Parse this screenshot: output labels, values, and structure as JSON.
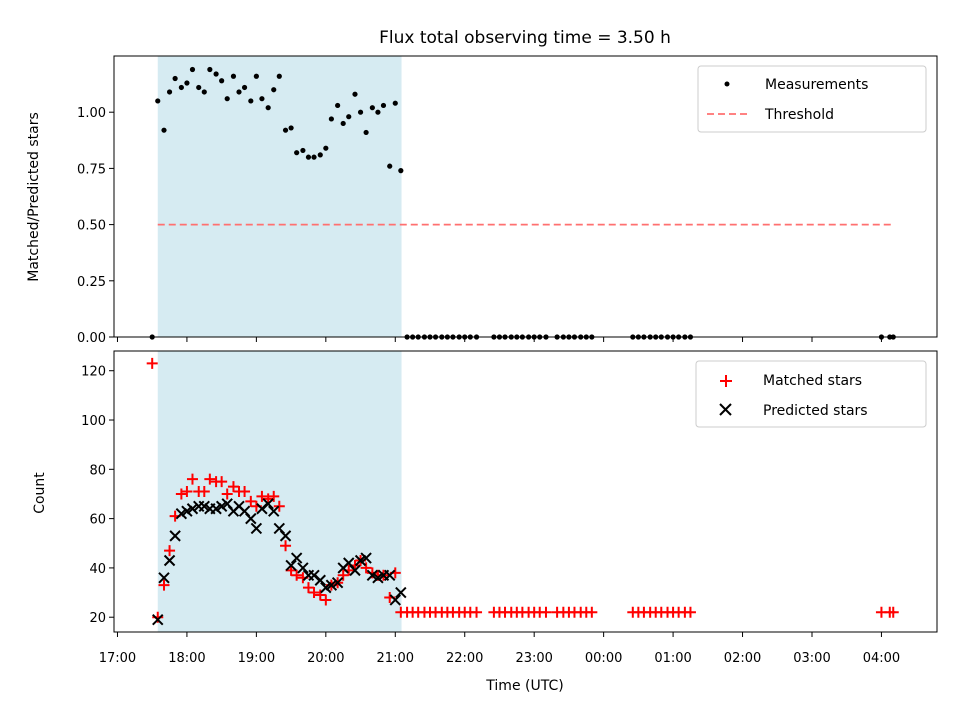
{
  "chart_data": [
    {
      "type": "scatter",
      "title": "Flux total observing time = 3.50 h",
      "xlabel": "",
      "ylabel": "Matched/Predicted stars",
      "xlim": [
        16.95,
        28.8
      ],
      "ylim": [
        0,
        1.25
      ],
      "yticks": [
        0.0,
        0.25,
        0.5,
        0.75,
        1.0
      ],
      "ytick_labels": [
        "0.00",
        "0.25",
        "0.50",
        "0.75",
        "1.00"
      ],
      "observing_window": [
        17.58,
        21.09
      ],
      "threshold": {
        "name": "Threshold",
        "y": 0.5,
        "x_range": [
          17.58,
          28.18
        ],
        "color": "#ff7070"
      },
      "legend": [
        "Measurements",
        "Threshold"
      ],
      "series": [
        {
          "name": "Measurements",
          "color": "#000000",
          "x": [
            17.5,
            17.58,
            17.67,
            17.75,
            17.83,
            17.92,
            18.0,
            18.08,
            18.17,
            18.25,
            18.33,
            18.42,
            18.5,
            18.58,
            18.67,
            18.75,
            18.83,
            18.92,
            19.0,
            19.08,
            19.17,
            19.25,
            19.33,
            19.42,
            19.5,
            19.58,
            19.67,
            19.75,
            19.83,
            19.92,
            20.0,
            20.08,
            20.17,
            20.25,
            20.33,
            20.42,
            20.5,
            20.58,
            20.67,
            20.75,
            20.83,
            20.92,
            21.0,
            21.08,
            21.17,
            21.25,
            21.33,
            21.42,
            21.5,
            21.58,
            21.67,
            21.75,
            21.83,
            21.92,
            22.0,
            22.08,
            22.17,
            22.42,
            22.5,
            22.58,
            22.67,
            22.75,
            22.83,
            22.92,
            23.0,
            23.08,
            23.17,
            23.33,
            23.42,
            23.5,
            23.58,
            23.67,
            23.75,
            23.83,
            24.42,
            24.5,
            24.58,
            24.67,
            24.75,
            24.83,
            24.92,
            25.0,
            25.08,
            25.17,
            25.25,
            28.0,
            28.12,
            28.17
          ],
          "y": [
            0.0,
            1.05,
            0.92,
            1.09,
            1.15,
            1.11,
            1.13,
            1.19,
            1.11,
            1.09,
            1.19,
            1.17,
            1.14,
            1.06,
            1.16,
            1.09,
            1.11,
            1.05,
            1.16,
            1.06,
            1.02,
            1.1,
            1.16,
            0.92,
            0.93,
            0.82,
            0.83,
            0.8,
            0.8,
            0.81,
            0.84,
            0.97,
            1.03,
            0.95,
            0.98,
            1.08,
            1.0,
            0.91,
            1.02,
            1.0,
            1.03,
            0.76,
            1.04,
            0.74,
            0,
            0,
            0,
            0,
            0,
            0,
            0,
            0,
            0,
            0,
            0,
            0,
            0,
            0,
            0,
            0,
            0,
            0,
            0,
            0,
            0,
            0,
            0,
            0,
            0,
            0,
            0,
            0,
            0,
            0,
            0,
            0,
            0,
            0,
            0,
            0,
            0,
            0,
            0,
            0,
            0,
            0,
            0,
            0
          ]
        }
      ]
    },
    {
      "type": "scatter",
      "title": "",
      "xlabel": "Time (UTC)",
      "ylabel": "Count",
      "xlim": [
        16.95,
        28.8
      ],
      "ylim": [
        14,
        128
      ],
      "yticks": [
        20,
        40,
        60,
        80,
        100,
        120
      ],
      "ytick_labels": [
        "20",
        "40",
        "60",
        "80",
        "100",
        "120"
      ],
      "xticks": [
        17,
        18,
        19,
        20,
        21,
        22,
        23,
        24,
        25,
        26,
        27,
        28
      ],
      "xtick_labels": [
        "17:00",
        "18:00",
        "19:00",
        "20:00",
        "21:00",
        "22:00",
        "23:00",
        "00:00",
        "01:00",
        "02:00",
        "03:00",
        "04:00"
      ],
      "observing_window": [
        17.58,
        21.09
      ],
      "legend": [
        "Matched stars",
        "Predicted stars"
      ],
      "series": [
        {
          "name": "Matched stars",
          "marker": "plus",
          "color": "#ff0000",
          "x": [
            17.5,
            17.58,
            17.67,
            17.75,
            17.83,
            17.92,
            18.0,
            18.08,
            18.17,
            18.25,
            18.33,
            18.42,
            18.5,
            18.58,
            18.67,
            18.75,
            18.83,
            18.92,
            19.0,
            19.08,
            19.17,
            19.25,
            19.33,
            19.42,
            19.5,
            19.58,
            19.67,
            19.75,
            19.83,
            19.92,
            20.0,
            20.08,
            20.17,
            20.25,
            20.33,
            20.42,
            20.5,
            20.58,
            20.67,
            20.75,
            20.83,
            20.92,
            21.0,
            21.08,
            21.17,
            21.25,
            21.33,
            21.42,
            21.5,
            21.58,
            21.67,
            21.75,
            21.83,
            21.92,
            22.0,
            22.08,
            22.17,
            22.42,
            22.5,
            22.58,
            22.67,
            22.75,
            22.83,
            22.92,
            23.0,
            23.08,
            23.17,
            23.33,
            23.42,
            23.5,
            23.58,
            23.67,
            23.75,
            23.83,
            24.42,
            24.5,
            24.58,
            24.67,
            24.75,
            24.83,
            24.92,
            25.0,
            25.08,
            25.17,
            25.25,
            28.0,
            28.12,
            28.17
          ],
          "y": [
            123,
            20,
            33,
            47,
            61,
            70,
            71,
            76,
            71,
            71,
            76,
            75,
            75,
            70,
            73,
            71,
            71,
            67,
            65,
            69,
            68,
            69,
            65,
            49,
            39,
            37,
            36,
            32,
            30,
            29,
            27,
            33,
            34,
            37,
            39,
            41,
            43,
            40,
            38,
            37,
            37,
            28,
            38,
            22,
            22,
            22,
            22,
            22,
            22,
            22,
            22,
            22,
            22,
            22,
            22,
            22,
            22,
            22,
            22,
            22,
            22,
            22,
            22,
            22,
            22,
            22,
            22,
            22,
            22,
            22,
            22,
            22,
            22,
            22,
            22,
            22,
            22,
            22,
            22,
            22,
            22,
            22,
            22,
            22,
            22,
            22,
            22,
            22
          ]
        },
        {
          "name": "Predicted stars",
          "marker": "x",
          "color": "#000000",
          "x": [
            17.58,
            17.67,
            17.75,
            17.83,
            17.92,
            18.0,
            18.08,
            18.17,
            18.25,
            18.33,
            18.42,
            18.5,
            18.58,
            18.67,
            18.75,
            18.83,
            18.92,
            19.0,
            19.08,
            19.17,
            19.25,
            19.33,
            19.42,
            19.5,
            19.58,
            19.67,
            19.75,
            19.83,
            19.92,
            20.0,
            20.08,
            20.17,
            20.25,
            20.33,
            20.42,
            20.5,
            20.58,
            20.67,
            20.75,
            20.83,
            20.92,
            21.0,
            21.08
          ],
          "y": [
            19,
            36,
            43,
            53,
            62,
            63,
            64,
            65,
            65,
            64,
            64,
            65,
            66,
            63,
            65,
            63,
            60,
            56,
            64,
            66,
            63,
            56,
            53,
            41,
            44,
            40,
            37,
            37,
            35,
            32,
            33,
            34,
            40,
            42,
            39,
            43,
            44,
            37,
            36,
            37,
            37,
            27,
            30
          ]
        }
      ]
    }
  ]
}
